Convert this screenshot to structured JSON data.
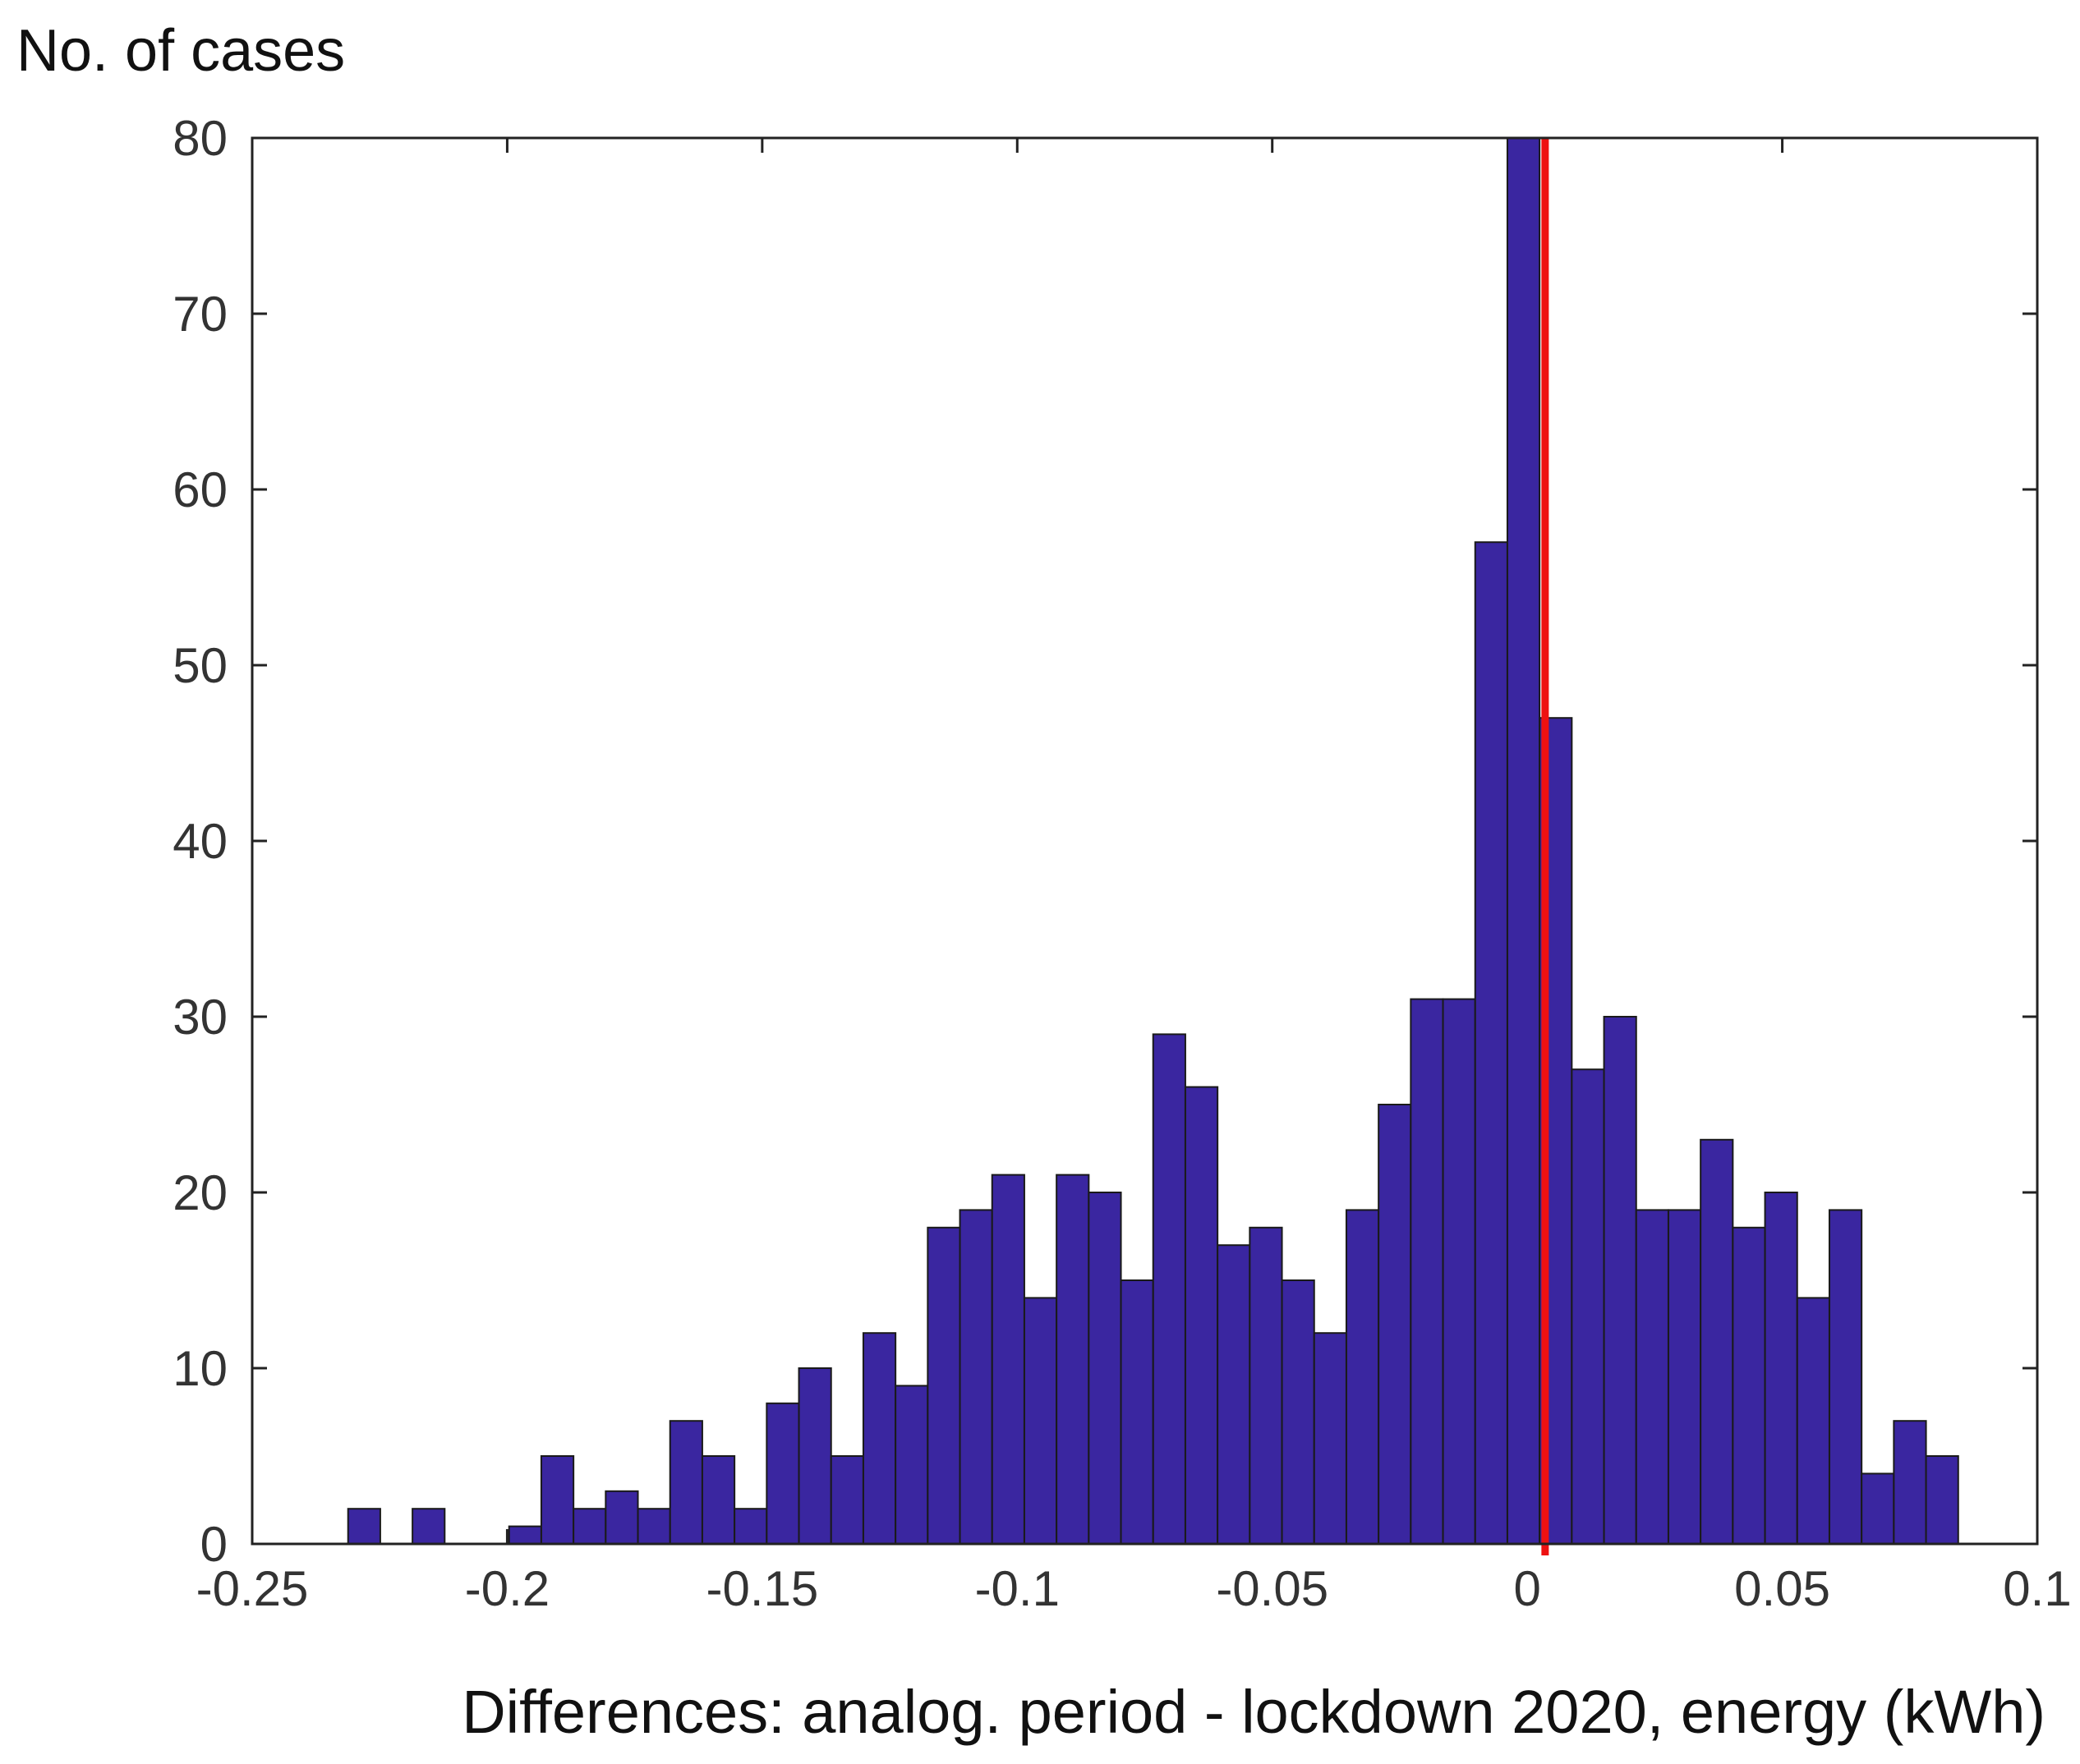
{
  "chart_data": {
    "type": "histogram",
    "ylabel": "No. of cases",
    "xlabel": "Differences: analog. period - lockdown 2020, energy  (kWh)",
    "xlim": [
      -0.25,
      0.1
    ],
    "ylim": [
      0,
      80
    ],
    "xticks": [
      -0.25,
      -0.2,
      -0.15,
      -0.1,
      -0.05,
      0,
      0.05,
      0.1
    ],
    "xtick_labels": [
      "-0.25",
      "-0.2",
      "-0.15",
      "-0.1",
      "-0.05",
      "0",
      "0.05",
      "0.1"
    ],
    "yticks": [
      0,
      10,
      20,
      30,
      40,
      50,
      60,
      70,
      80
    ],
    "ytick_labels": [
      "0",
      "10",
      "20",
      "30",
      "40",
      "50",
      "60",
      "70",
      "80"
    ],
    "bin_start": -0.2312,
    "bin_width": 0.006314,
    "counts": [
      2,
      0,
      2,
      0,
      0,
      1,
      5,
      2,
      3,
      2,
      7,
      5,
      2,
      8,
      10,
      5,
      12,
      9,
      18,
      19,
      21,
      14,
      21,
      20,
      15,
      29,
      26,
      17,
      18,
      15,
      12,
      19,
      25,
      31,
      31,
      57,
      80,
      47,
      27,
      30,
      19,
      19,
      23,
      18,
      20,
      14,
      19,
      4,
      7,
      5
    ],
    "bar_color": "#3a26a0",
    "reference_line": {
      "x": 0.0035,
      "color": "#ee1111"
    }
  }
}
